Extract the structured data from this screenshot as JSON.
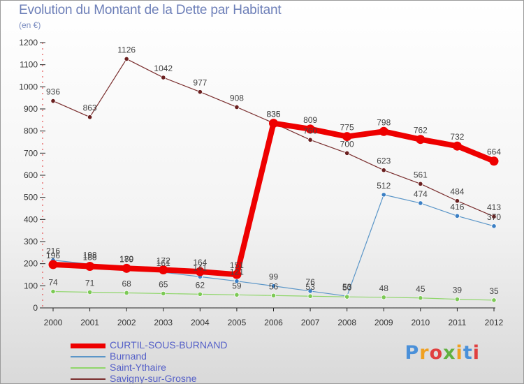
{
  "chart_data": {
    "type": "line",
    "title": "Evolution du Montant de la Dette par Habitant",
    "subtitle": "(en €)",
    "xlabel": "",
    "ylabel": "",
    "ylim": [
      0,
      1200
    ],
    "yticks": [
      0,
      100,
      200,
      300,
      400,
      500,
      600,
      700,
      800,
      900,
      1000,
      1100,
      1200
    ],
    "x": [
      "2000",
      "2001",
      "2002",
      "2003",
      "2004",
      "2005",
      "2006",
      "2007",
      "2008",
      "2009",
      "2010",
      "2011",
      "2012"
    ],
    "grid": false,
    "legend_position": "bottom-left",
    "series": [
      {
        "name": "Savigny-sur-Grosne",
        "color": "#7a2e2e",
        "marker": "#6a1f1f",
        "width": 1.2,
        "values": [
          936,
          863,
          1126,
          1042,
          977,
          908,
          836,
          760,
          700,
          623,
          561,
          484,
          413
        ]
      },
      {
        "name": "Burnand",
        "color": "#5b96c8",
        "marker": "#3b7fc4",
        "width": 1.2,
        "values": [
          216,
          198,
          180,
          161,
          141,
          121,
          99,
          76,
          53,
          512,
          474,
          416,
          370
        ]
      },
      {
        "name": "Saint-Ythaire",
        "color": "#8fd66a",
        "marker": "#7cc955",
        "width": 1.2,
        "values": [
          74,
          71,
          68,
          65,
          62,
          59,
          56,
          53,
          50,
          48,
          45,
          39,
          35
        ]
      },
      {
        "name": "CURTIL-SOUS-BURNAND",
        "color": "#ee0000",
        "marker": "#ee0000",
        "width": 8,
        "values": [
          196,
          188,
          179,
          172,
          164,
          151,
          835,
          809,
          775,
          798,
          762,
          732,
          664
        ]
      }
    ],
    "legend": [
      "CURTIL-SOUS-BURNAND",
      "Burnand",
      "Saint-Ythaire",
      "Savigny-sur-Grosne"
    ]
  },
  "brand": {
    "logo_letters": [
      "P",
      "r",
      "o",
      "x",
      "i",
      "t",
      "i"
    ],
    "logo_colors": [
      "#4a90d9",
      "#f0a020",
      "#e04040",
      "#60b040",
      "#f0a020",
      "#4a90d9",
      "#e04040"
    ]
  }
}
